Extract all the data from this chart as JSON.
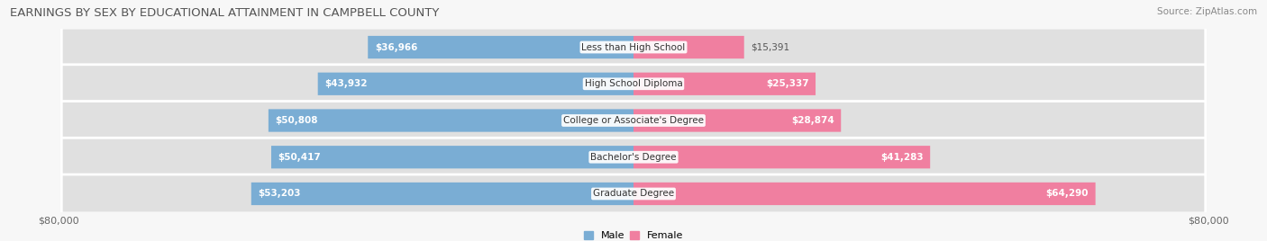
{
  "title": "EARNINGS BY SEX BY EDUCATIONAL ATTAINMENT IN CAMPBELL COUNTY",
  "source": "Source: ZipAtlas.com",
  "categories": [
    "Less than High School",
    "High School Diploma",
    "College or Associate's Degree",
    "Bachelor's Degree",
    "Graduate Degree"
  ],
  "male_values": [
    36966,
    43932,
    50808,
    50417,
    53203
  ],
  "female_values": [
    15391,
    25337,
    28874,
    41283,
    64290
  ],
  "male_color": "#7aadd4",
  "female_color": "#f07fa0",
  "row_bg_color": "#e0e0e0",
  "max_value": 80000,
  "x_left_label": "$80,000",
  "x_right_label": "$80,000",
  "title_fontsize": 9.5,
  "source_fontsize": 7.5,
  "label_fontsize": 7.5,
  "cat_fontsize": 7.5,
  "bar_height": 0.62,
  "figsize": [
    14.06,
    2.68
  ],
  "dpi": 100,
  "fig_bg": "#f7f7f7",
  "inside_label_color": "#ffffff",
  "outside_label_color": "#555555"
}
